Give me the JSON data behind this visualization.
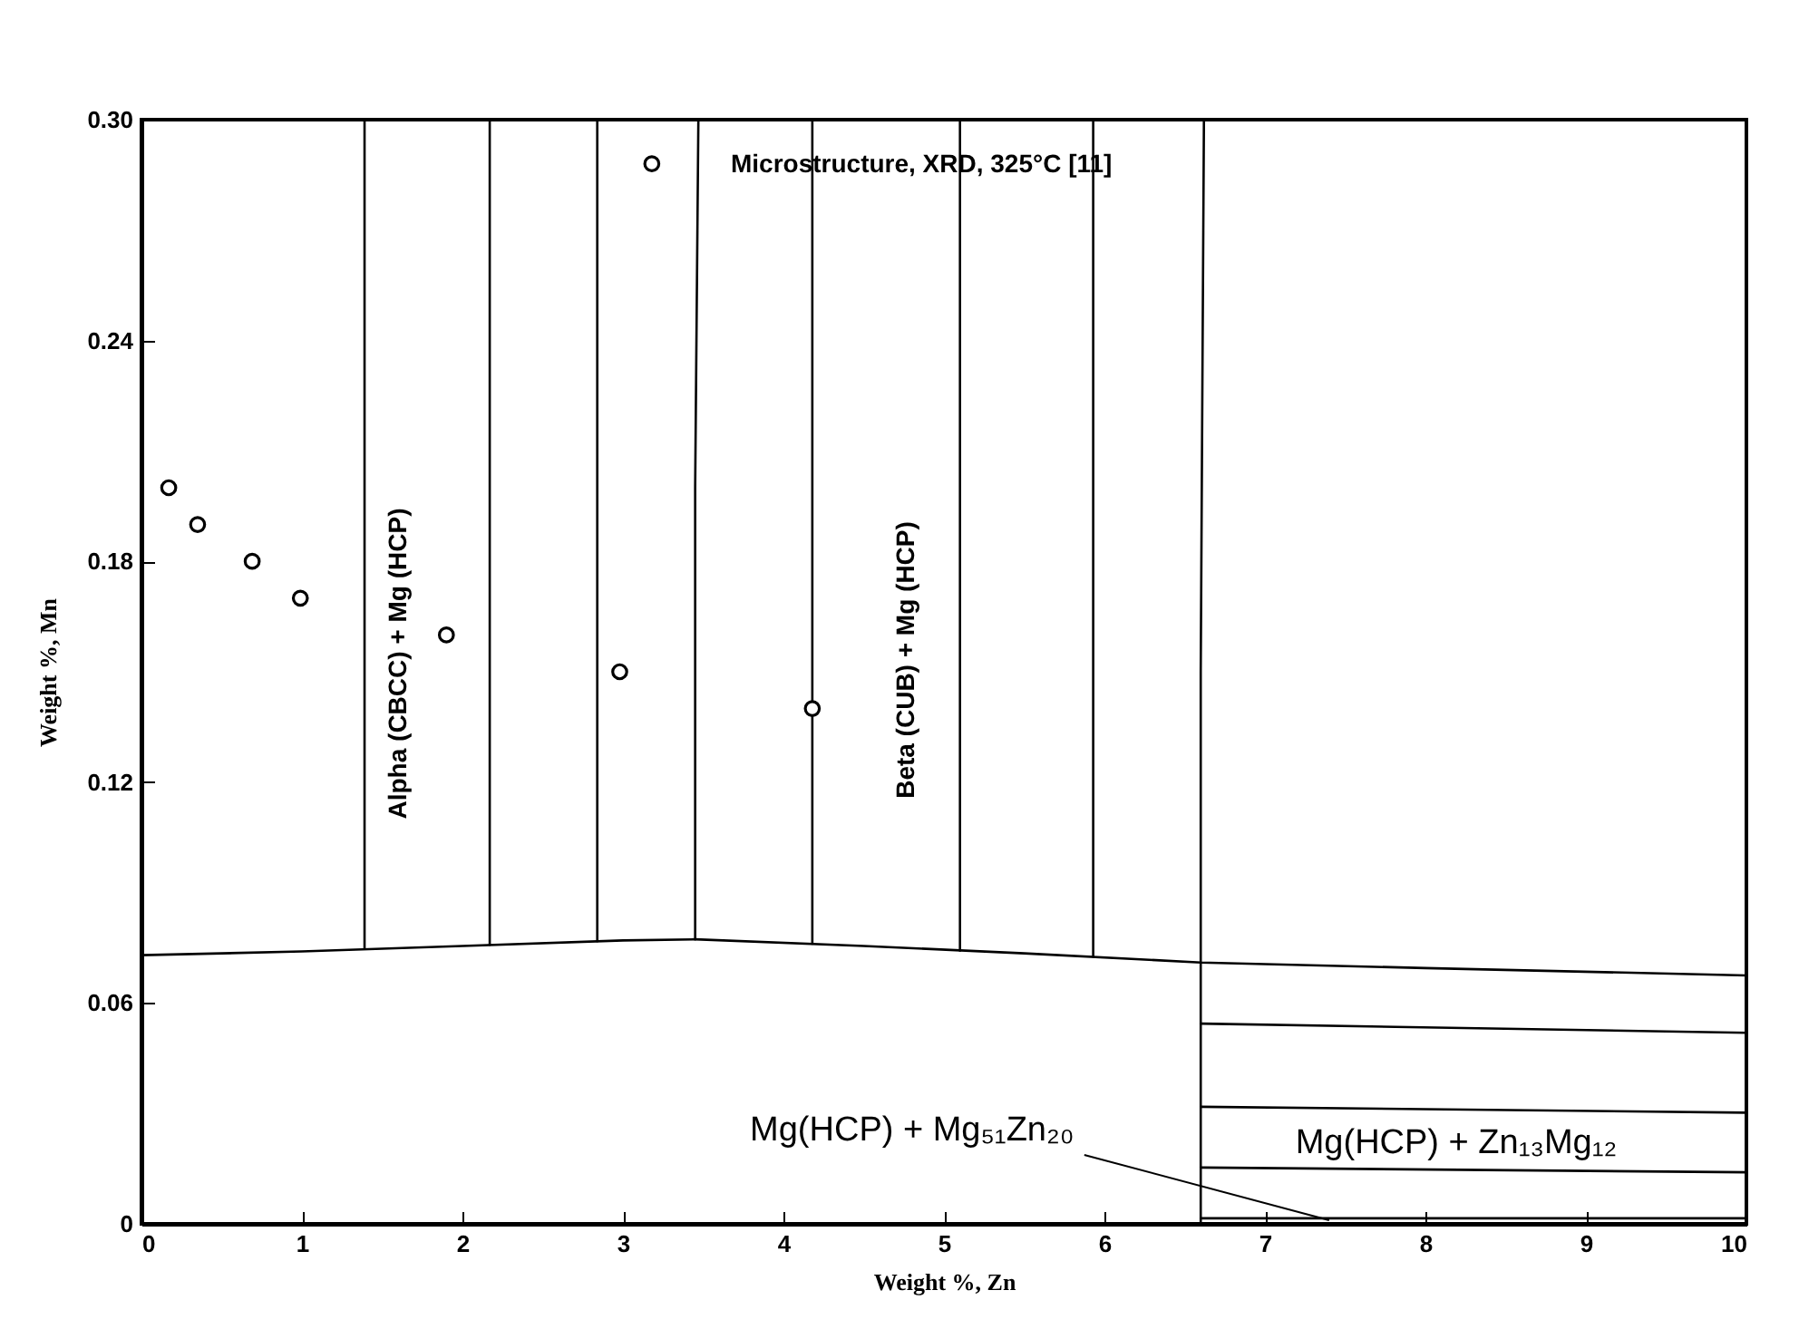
{
  "chart_data": {
    "type": "line",
    "xlabel": "Weight %, Zn",
    "ylabel": "Weight %, Mn",
    "xlim": [
      0,
      10
    ],
    "ylim": [
      0,
      0.3
    ],
    "xticks": [
      0,
      1,
      2,
      3,
      4,
      5,
      6,
      7,
      8,
      9,
      10
    ],
    "yticks": [
      0,
      0.06,
      0.12,
      0.18,
      0.24,
      {
        "value": 0.3,
        "label": "0.30"
      }
    ],
    "grid": false,
    "series": [
      {
        "color": "#000000",
        "x": [
          0,
          1,
          2,
          3,
          3.45,
          4.5,
          5.5,
          6.6,
          8,
          10
        ],
        "values": [
          0.073,
          0.074,
          0.0755,
          0.077,
          0.0773,
          0.0755,
          0.0735,
          0.071,
          0.0695,
          0.0675
        ]
      },
      {
        "type": "line",
        "color": "#000000",
        "x": [
          3.45,
          3.45,
          3.47
        ],
        "values": [
          0.0773,
          0.2,
          0.3
        ]
      },
      {
        "type": "line",
        "color": "#000000",
        "x": [
          6.6,
          6.6,
          6.62
        ],
        "values": [
          0,
          0.15,
          0.3
        ]
      },
      {
        "type": "line",
        "color": "#000000",
        "x": [
          6.6,
          10
        ],
        "values": [
          0.0015,
          0.0015
        ]
      },
      {
        "type": "line",
        "color": "#000000",
        "x": [
          1.39,
          1.39
        ],
        "values": [
          0.075,
          0.3
        ]
      },
      {
        "type": "line",
        "color": "#000000",
        "x": [
          2.17,
          2.17
        ],
        "values": [
          0.0758,
          0.3
        ]
      },
      {
        "type": "line",
        "color": "#000000",
        "x": [
          2.84,
          2.84
        ],
        "values": [
          0.0768,
          0.3
        ]
      },
      {
        "type": "line",
        "color": "#000000",
        "x": [
          4.18,
          4.18
        ],
        "values": [
          0.0761,
          0.3
        ]
      },
      {
        "type": "line",
        "color": "#000000",
        "x": [
          5.1,
          5.1
        ],
        "values": [
          0.0742,
          0.3
        ]
      },
      {
        "type": "line",
        "color": "#000000",
        "x": [
          5.93,
          5.93
        ],
        "values": [
          0.0726,
          0.3
        ]
      },
      {
        "type": "line",
        "color": "#000000",
        "x": [
          6.6,
          10
        ],
        "values": [
          0.0544,
          0.0519
        ]
      },
      {
        "type": "line",
        "color": "#000000",
        "x": [
          6.6,
          10
        ],
        "values": [
          0.0318,
          0.0302
        ]
      },
      {
        "type": "line",
        "color": "#000000",
        "x": [
          6.6,
          10
        ],
        "values": [
          0.0153,
          0.014
        ]
      },
      {
        "type": "scatter",
        "color": "#000000",
        "marker": "circle",
        "x": [
          0.17,
          0.35,
          0.69,
          0.99,
          1.9,
          2.98,
          4.18,
          3.18
        ],
        "values": [
          0.2,
          0.19,
          0.18,
          0.17,
          0.16,
          0.15,
          0.14,
          0.288
        ]
      }
    ],
    "annotations": [
      "Microstructure, XRD, 325°C [11]",
      "Alpha (CBCC) + Mg (HCP)",
      "Beta (CUB) + Mg (HCP)",
      {
        "text": "Mg(HCP) + Mg₅₁Zn₂₀",
        "x": 7.4,
        "y": 0.001
      },
      "Mg(HCP) + Zn₁₃Mg₁₂"
    ]
  }
}
